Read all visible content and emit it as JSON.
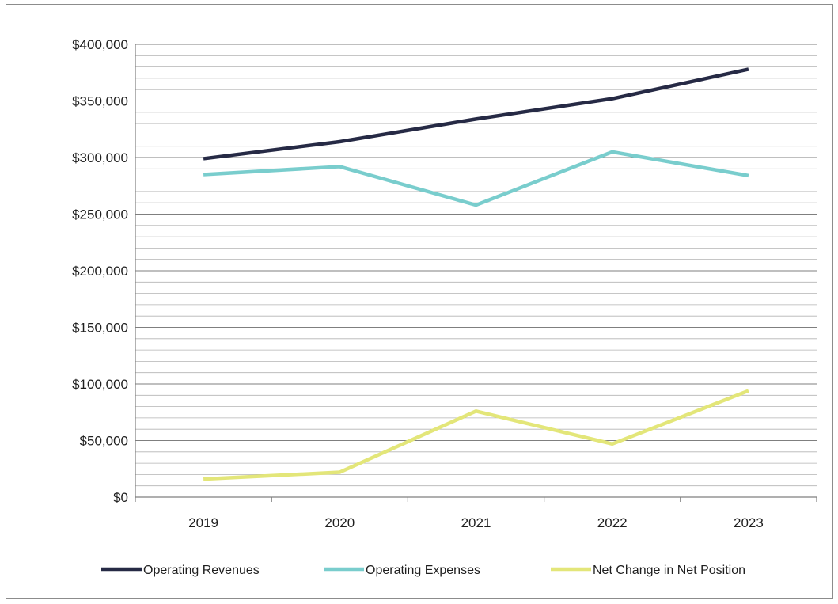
{
  "chart_data": {
    "type": "line",
    "title": "",
    "xlabel": "",
    "ylabel": "",
    "categories": [
      "2019",
      "2020",
      "2021",
      "2022",
      "2023"
    ],
    "ylim": [
      0,
      400000
    ],
    "y_ticks": [
      0,
      50000,
      100000,
      150000,
      200000,
      250000,
      300000,
      350000,
      400000
    ],
    "y_tick_labels": [
      "$0",
      "$50,000",
      "$100,000",
      "$150,000",
      "$200,000",
      "$250,000",
      "$300,000",
      "$350,000",
      "$400,000"
    ],
    "minor_gridline_step": 10000,
    "grid": true,
    "legend_position": "bottom",
    "series": [
      {
        "name": "Operating Revenues",
        "color": "#262a45",
        "values": [
          299000,
          314000,
          334000,
          352000,
          378000
        ]
      },
      {
        "name": "Operating Expenses",
        "color": "#79cdcd",
        "values": [
          285000,
          292000,
          258000,
          305000,
          284000
        ]
      },
      {
        "name": "Net Change in Net Position",
        "color": "#e3e679",
        "values": [
          16000,
          22000,
          76000,
          47000,
          94000
        ]
      }
    ]
  }
}
